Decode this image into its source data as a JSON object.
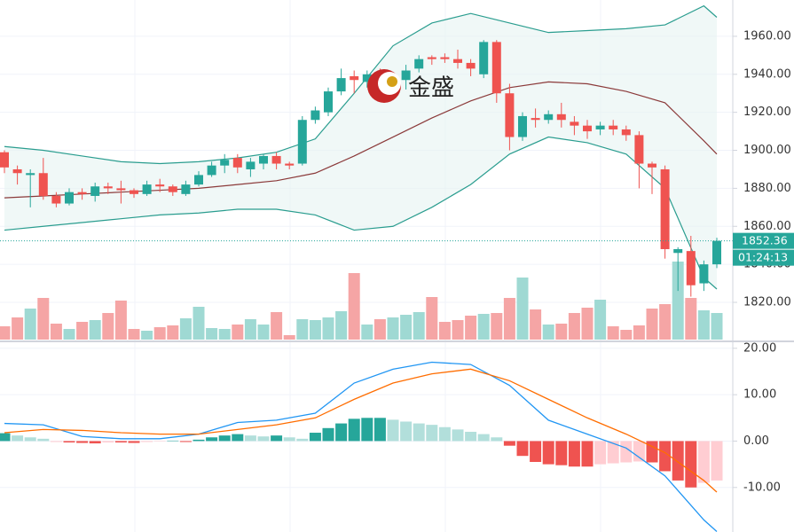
{
  "watermark": "金盛",
  "chart_data": [
    {
      "type": "candlestick",
      "open": [
        1899,
        1890,
        1887,
        1888,
        1876,
        1872,
        1878,
        1876,
        1881,
        1880,
        1879,
        1877,
        1882,
        1881,
        1877,
        1882,
        1887,
        1892,
        1896,
        1890,
        1893,
        1897,
        1893,
        1893,
        1916,
        1920,
        1931,
        1939,
        1936,
        1940,
        1935,
        1937,
        1943,
        1949,
        1949,
        1948,
        1946,
        1940,
        1957,
        1930,
        1907,
        1917,
        1916,
        1919,
        1915,
        1913,
        1911,
        1913,
        1911,
        1908,
        1893,
        1890,
        1846,
        1847,
        1830,
        1840
      ],
      "high": [
        1900,
        1892,
        1890,
        1896,
        1878,
        1880,
        1880,
        1883,
        1883,
        1884,
        1880,
        1884,
        1885,
        1882,
        1884,
        1889,
        1894,
        1898,
        1898,
        1896,
        1898,
        1899,
        1894,
        1918,
        1923,
        1933,
        1943,
        1942,
        1942,
        1943,
        1941,
        1945,
        1950,
        1950,
        1951,
        1953,
        1948,
        1958,
        1958,
        1935,
        1920,
        1922,
        1921,
        1925,
        1918,
        1916,
        1915,
        1916,
        1913,
        1910,
        1894,
        1892,
        1849,
        1855,
        1842,
        1854
      ],
      "low": [
        1888,
        1882,
        1870,
        1874,
        1870,
        1871,
        1874,
        1873,
        1877,
        1872,
        1875,
        1876,
        1878,
        1876,
        1876,
        1881,
        1886,
        1888,
        1888,
        1886,
        1890,
        1890,
        1890,
        1892,
        1914,
        1918,
        1929,
        1930,
        1933,
        1932,
        1930,
        1932,
        1941,
        1945,
        1946,
        1943,
        1939,
        1938,
        1925,
        1900,
        1905,
        1912,
        1914,
        1912,
        1908,
        1906,
        1908,
        1908,
        1905,
        1880,
        1877,
        1843,
        1826,
        1823,
        1826,
        1838
      ],
      "close": [
        1891,
        1888,
        1888,
        1876,
        1872,
        1878,
        1877,
        1881,
        1880,
        1879,
        1877,
        1882,
        1881,
        1878,
        1882,
        1887,
        1892,
        1895,
        1891,
        1894,
        1897,
        1893,
        1892,
        1916,
        1921,
        1931,
        1938,
        1937,
        1940,
        1936,
        1939,
        1942,
        1948,
        1948,
        1948,
        1946,
        1943,
        1957,
        1930,
        1907,
        1918,
        1916,
        1919,
        1916,
        1913,
        1910,
        1913,
        1911,
        1908,
        1893,
        1891,
        1848,
        1848,
        1829,
        1840,
        1852.36
      ],
      "up_color": "#26a69a",
      "down_color": "#ef5350",
      "ylim": [
        1800.4,
        1979.1
      ],
      "yticks": [
        {
          "value": 1960,
          "label": "1960.00"
        },
        {
          "value": 1940,
          "label": "1940.00"
        },
        {
          "value": 1920,
          "label": "1920.00"
        },
        {
          "value": 1900,
          "label": "1900.00"
        },
        {
          "value": 1880,
          "label": "1880.00"
        },
        {
          "value": 1860,
          "label": "1860.00"
        },
        {
          "value": 1840,
          "label": "1840.00"
        },
        {
          "value": 1820,
          "label": "1820.00"
        }
      ],
      "bands": {
        "x": [
          0,
          3,
          6,
          9,
          12,
          15,
          18,
          21,
          24,
          27,
          30,
          33,
          36,
          39,
          42,
          45,
          48,
          51,
          54,
          55
        ],
        "upper": [
          1902,
          1900,
          1897,
          1894,
          1893,
          1894,
          1896,
          1899,
          1906,
          1930,
          1955,
          1967,
          1972,
          1967,
          1962,
          1963,
          1964,
          1966,
          1976,
          1970
        ],
        "middle": [
          1875,
          1876,
          1877,
          1878,
          1879,
          1880,
          1882,
          1884,
          1888,
          1897,
          1907,
          1917,
          1926,
          1933,
          1936,
          1935,
          1931,
          1925,
          1905,
          1898
        ],
        "lower": [
          1858,
          1860,
          1862,
          1864,
          1866,
          1867,
          1869,
          1869,
          1866,
          1858,
          1860,
          1870,
          1882,
          1898,
          1907,
          1904,
          1898,
          1880,
          1833,
          1827
        ],
        "band_color": "#2a9d8f",
        "middle_color": "#8b3a3a",
        "fill_color": "#e6f4f2"
      },
      "volume": {
        "values": [
          15,
          25,
          35,
          47,
          18,
          12,
          20,
          22,
          30,
          44,
          12,
          10,
          14,
          16,
          24,
          37,
          13,
          12,
          17,
          23,
          17,
          31,
          5,
          23,
          22,
          25,
          32,
          75,
          17,
          23,
          25,
          28,
          31,
          48,
          20,
          22,
          27,
          29,
          30,
          47,
          70,
          34,
          17,
          18,
          30,
          36,
          45,
          15,
          11,
          16,
          35,
          40,
          88,
          47,
          33,
          30
        ],
        "up_color": "#9fd9d3",
        "down_color": "#f5a5a5"
      },
      "last_price": 1852.36,
      "countdown": "01:24:13"
    },
    {
      "type": "macd",
      "ylim": [
        -19.6,
        21.3
      ],
      "yticks": [
        {
          "value": 20,
          "label": "20.00"
        },
        {
          "value": 10,
          "label": "10.00"
        },
        {
          "value": 0,
          "label": "0.00"
        },
        {
          "value": -10,
          "label": "-10.00"
        }
      ],
      "histogram": [
        1.7,
        1.2,
        0.8,
        0.5,
        -0.2,
        -0.3,
        -0.4,
        -0.5,
        -0.3,
        -0.3,
        -0.4,
        -0.2,
        -0.1,
        0.1,
        -0.2,
        0.3,
        0.8,
        1.2,
        1.5,
        1.2,
        1.0,
        1.2,
        0.8,
        0.5,
        1.8,
        2.8,
        3.8,
        4.8,
        5.0,
        5.0,
        4.6,
        4.2,
        3.8,
        3.5,
        3.0,
        2.5,
        2.0,
        1.5,
        0.8,
        -1.0,
        -3.2,
        -4.5,
        -5.0,
        -5.2,
        -5.5,
        -5.5,
        -5.0,
        -4.8,
        -4.6,
        -4.4,
        -4.6,
        -6.5,
        -8.5,
        -10.0,
        -9.0,
        -8.5
      ],
      "x": [
        0,
        3,
        6,
        9,
        12,
        15,
        18,
        21,
        24,
        27,
        30,
        33,
        36,
        39,
        42,
        45,
        48,
        51,
        54,
        55
      ],
      "series": [
        {
          "color": "#2196f3",
          "values": [
            3.8,
            3.5,
            1.0,
            0.5,
            0.5,
            1.5,
            4.0,
            4.5,
            6.0,
            12.5,
            15.5,
            17.0,
            16.5,
            12.0,
            4.5,
            1.5,
            -1.5,
            -7.5,
            -17.0,
            -19.5
          ]
        },
        {
          "color": "#ff6d00",
          "values": [
            1.8,
            2.5,
            2.3,
            1.8,
            1.5,
            1.5,
            2.5,
            3.5,
            5.0,
            9.0,
            12.5,
            14.5,
            15.5,
            13.0,
            9.0,
            5.0,
            1.5,
            -2.5,
            -8.5,
            -11.0
          ]
        }
      ]
    }
  ]
}
